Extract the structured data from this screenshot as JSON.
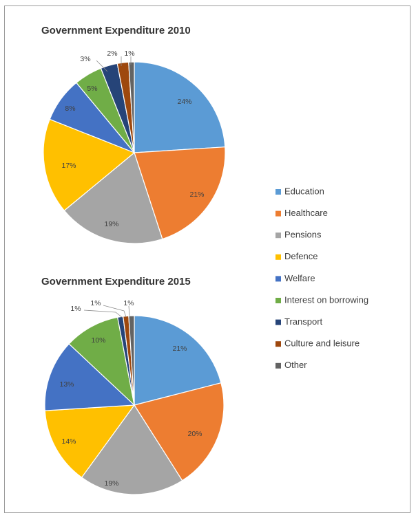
{
  "chart_data": [
    {
      "type": "pie",
      "title": "Government Expenditure 2010",
      "categories": [
        "Education",
        "Healthcare",
        "Pensions",
        "Defence",
        "Welfare",
        "Interest on borrowing",
        "Transport",
        "Culture and leisure",
        "Other"
      ],
      "values": [
        24,
        21,
        19,
        17,
        8,
        5,
        3,
        2,
        1
      ],
      "labels": [
        "24%",
        "21%",
        "19%",
        "17%",
        "8%",
        "5%",
        "3%",
        "2%",
        "1%"
      ]
    },
    {
      "type": "pie",
      "title": "Government Expenditure 2015",
      "categories": [
        "Education",
        "Healthcare",
        "Pensions",
        "Defence",
        "Welfare",
        "Interest on borrowing",
        "Transport",
        "Culture and leisure",
        "Other"
      ],
      "values": [
        21,
        20,
        19,
        14,
        13,
        10,
        1,
        1,
        1
      ],
      "labels": [
        "21%",
        "20%",
        "19%",
        "14%",
        "13%",
        "10%",
        "1%",
        "1%",
        "1%"
      ]
    }
  ],
  "legend": {
    "placement": "right",
    "items": [
      "Education",
      "Healthcare",
      "Pensions",
      "Defence",
      "Welfare",
      "Interest on borrowing",
      "Transport",
      "Culture and leisure",
      "Other"
    ]
  },
  "colors": [
    "#5b9bd5",
    "#ed7d31",
    "#a5a5a5",
    "#ffc000",
    "#4472c4",
    "#70ad47",
    "#264478",
    "#9e480e",
    "#636363"
  ]
}
